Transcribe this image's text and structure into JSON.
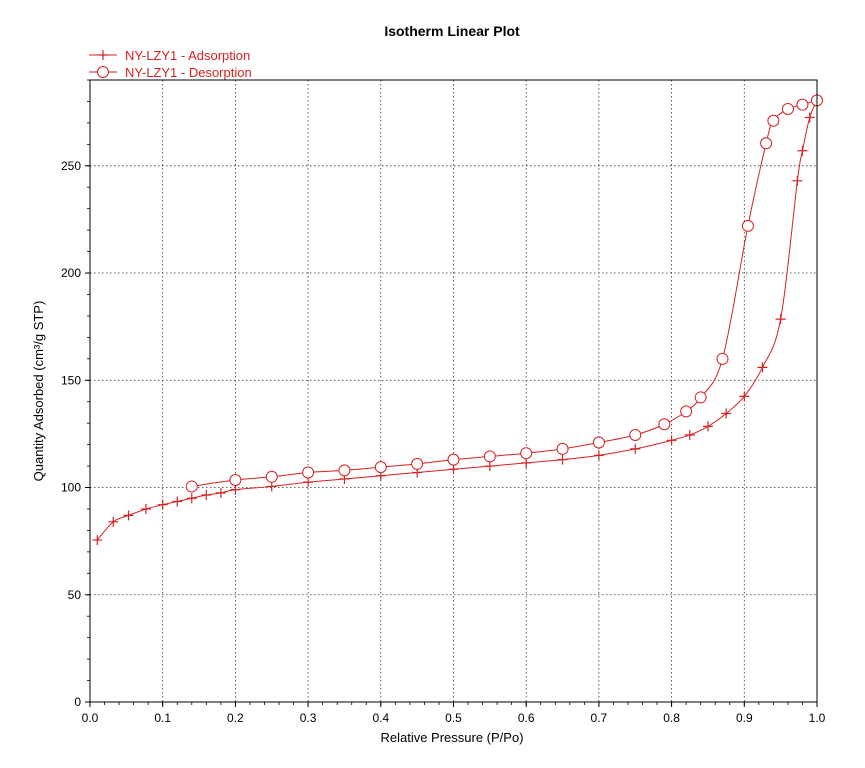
{
  "chart_data": {
    "type": "line",
    "title": "Isotherm Linear Plot",
    "xlabel": "Relative Pressure (P/Po)",
    "ylabel": "Quantity Adsorbed (cm³/g STP)",
    "xlim": [
      0.0,
      1.0
    ],
    "ylim": [
      0,
      290
    ],
    "xticks": [
      0.0,
      0.1,
      0.2,
      0.3,
      0.4,
      0.5,
      0.6,
      0.7,
      0.8,
      0.9,
      1.0
    ],
    "xtick_labels": [
      "0.0",
      "0.1",
      "0.2",
      "0.3",
      "0.4",
      "0.5",
      "0.6",
      "0.7",
      "0.8",
      "0.9",
      "1.0"
    ],
    "yticks": [
      0,
      50,
      100,
      150,
      200,
      250
    ],
    "ytick_labels": [
      "0",
      "50",
      "100",
      "150",
      "200",
      "250"
    ],
    "grid": true,
    "legend_position": "top-left",
    "color": "#d62020",
    "series": [
      {
        "name": "NY-LZY1 - Adsorption",
        "marker": "plus",
        "x": [
          0.01,
          0.032,
          0.053,
          0.077,
          0.1,
          0.12,
          0.14,
          0.16,
          0.18,
          0.2,
          0.25,
          0.3,
          0.35,
          0.4,
          0.45,
          0.5,
          0.55,
          0.6,
          0.65,
          0.7,
          0.75,
          0.8,
          0.825,
          0.85,
          0.875,
          0.9,
          0.925,
          0.95,
          0.973,
          0.98,
          0.99,
          1.0
        ],
        "y": [
          75.5,
          84.0,
          87.0,
          90.0,
          92.0,
          93.5,
          95.0,
          96.5,
          97.5,
          99.0,
          100.5,
          102.5,
          104.0,
          105.5,
          107.0,
          108.5,
          110.0,
          111.5,
          113.0,
          115.0,
          118.0,
          122.0,
          124.5,
          128.5,
          134.5,
          142.5,
          156.0,
          178.5,
          243.0,
          257.0,
          272.5,
          280.5
        ]
      },
      {
        "name": "NY-LZY1 - Desorption",
        "marker": "circle",
        "x": [
          1.0,
          0.98,
          0.96,
          0.94,
          0.93,
          0.905,
          0.87,
          0.84,
          0.82,
          0.79,
          0.75,
          0.7,
          0.65,
          0.6,
          0.55,
          0.5,
          0.45,
          0.4,
          0.35,
          0.3,
          0.25,
          0.2,
          0.14
        ],
        "y": [
          280.5,
          278.5,
          276.5,
          271.0,
          260.5,
          222.0,
          160.0,
          142.0,
          135.5,
          129.5,
          124.5,
          121.0,
          118.0,
          116.0,
          114.5,
          113.0,
          111.0,
          109.5,
          108.0,
          107.0,
          105.0,
          103.5,
          100.5
        ]
      }
    ]
  }
}
